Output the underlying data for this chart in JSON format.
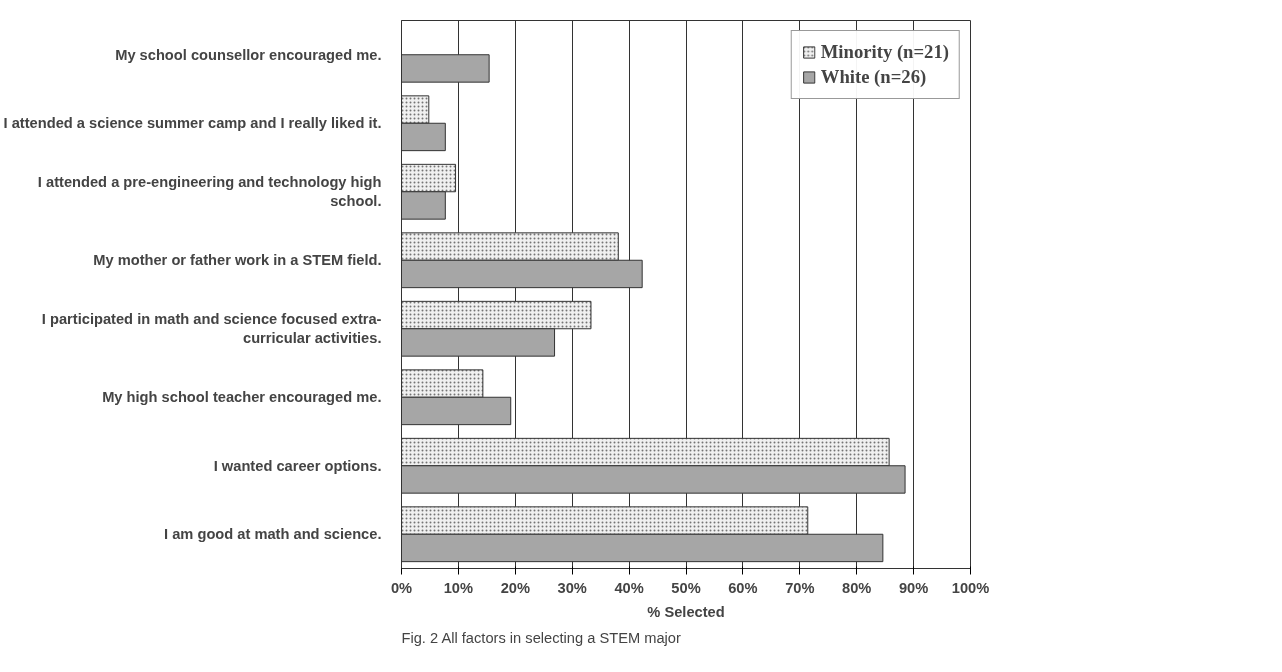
{
  "chart_data": {
    "type": "bar",
    "orientation": "horizontal",
    "xlabel": "% Selected",
    "categories": [
      "My school counsellor encouraged me.",
      "I attended a science summer camp and I really liked it.",
      "I attended a pre-engineering and technology high school.",
      "My mother or father work in a STEM field.",
      "I participated in math and science focused extra-curricular activities.",
      "My high school teacher encouraged me.",
      "I wanted career options.",
      "I am good at math and science."
    ],
    "series": [
      {
        "name": "Minority (n=21)",
        "color": "#f0f0f0",
        "values": [
          null,
          4.8,
          9.5,
          38.1,
          33.3,
          14.3,
          85.7,
          71.4
        ]
      },
      {
        "name": "White (n=26)",
        "color": "#a6a6a6",
        "values": [
          15.4,
          7.7,
          7.7,
          42.3,
          26.9,
          19.2,
          88.5,
          84.6
        ]
      }
    ],
    "xlim": [
      0,
      100
    ],
    "xticks": [
      {
        "value": 0,
        "label": "0%"
      },
      {
        "value": 10,
        "label": "10%"
      },
      {
        "value": 20,
        "label": "20%"
      },
      {
        "value": 30,
        "label": "30%"
      },
      {
        "value": 40,
        "label": "40%"
      },
      {
        "value": 50,
        "label": "50%"
      },
      {
        "value": 60,
        "label": "60%"
      },
      {
        "value": 70,
        "label": "70%"
      },
      {
        "value": 80,
        "label": "80%"
      },
      {
        "value": 90,
        "label": "90%"
      },
      {
        "value": 100,
        "label": "100%"
      }
    ],
    "grid": "x",
    "legend": "top right",
    "annotations": [
      "Fig. 2 All factors in selecting a STEM major"
    ]
  }
}
